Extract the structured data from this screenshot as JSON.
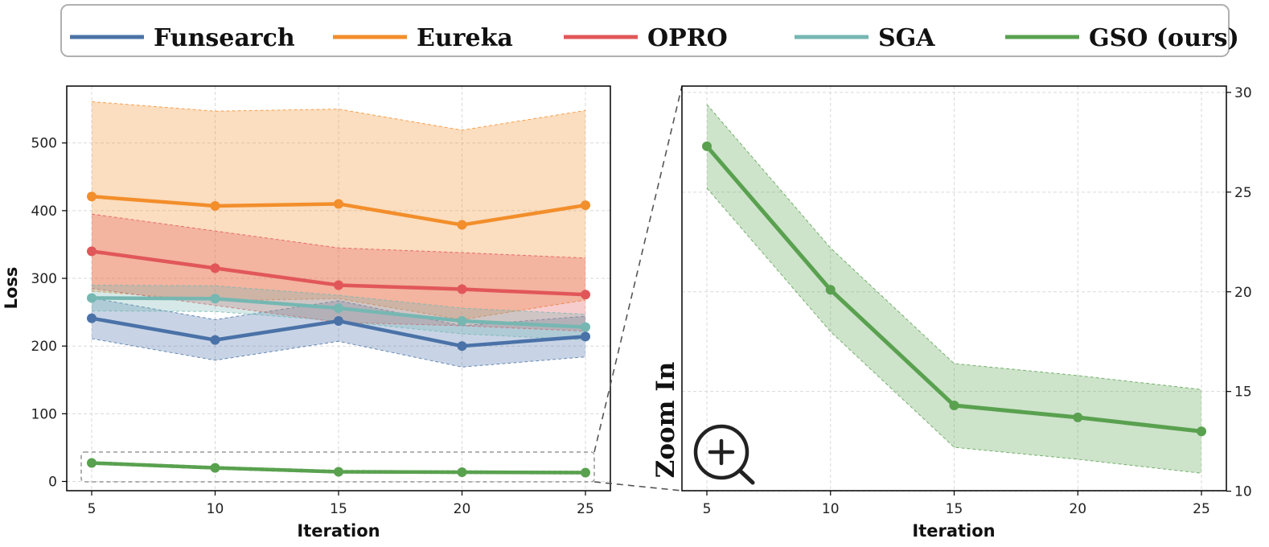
{
  "legend": {
    "items": [
      {
        "label": "Funsearch",
        "color": "#4a72a8"
      },
      {
        "label": "Eureka",
        "color": "#f28e2b"
      },
      {
        "label": "OPRO",
        "color": "#e15759"
      },
      {
        "label": "SGA",
        "color": "#76b7b2"
      },
      {
        "label": "GSO (ours)",
        "color": "#59a14f"
      }
    ]
  },
  "zoom_label": "Zoom In",
  "zoom_icon": "magnifier-plus-icon",
  "chart_data": [
    {
      "type": "line",
      "x": [
        5,
        10,
        15,
        20,
        25
      ],
      "xlabel": "Iteration",
      "ylabel": "Loss",
      "ylim": [
        -12,
        580
      ],
      "yticks": [
        0,
        100,
        200,
        300,
        400,
        500
      ],
      "xticks": [
        5,
        10,
        15,
        20,
        25
      ],
      "grid": true,
      "shaded_band": true,
      "series": [
        {
          "name": "Funsearch",
          "color": "#4a72a8",
          "values": [
            241,
            209,
            237,
            200,
            214
          ],
          "upper": [
            271,
            239,
            267,
            230,
            244
          ],
          "lower": [
            211,
            179,
            207,
            169,
            184
          ]
        },
        {
          "name": "Eureka",
          "color": "#f28e2b",
          "values": [
            421,
            407,
            410,
            379,
            408
          ],
          "upper": [
            561,
            547,
            550,
            519,
            548
          ],
          "lower": [
            281,
            267,
            270,
            239,
            268
          ]
        },
        {
          "name": "OPRO",
          "color": "#e15759",
          "values": [
            340,
            315,
            290,
            284,
            276
          ],
          "upper": [
            395,
            370,
            345,
            338,
            330
          ],
          "lower": [
            285,
            260,
            235,
            230,
            222
          ]
        },
        {
          "name": "SGA",
          "color": "#76b7b2",
          "values": [
            271,
            270,
            256,
            237,
            228
          ],
          "upper": [
            290,
            289,
            275,
            256,
            247
          ],
          "lower": [
            252,
            251,
            237,
            218,
            209
          ]
        },
        {
          "name": "GSO (ours)",
          "color": "#59a14f",
          "values": [
            27.3,
            20.1,
            14.3,
            13.7,
            13.0
          ],
          "upper": [
            29.4,
            22.2,
            16.4,
            15.8,
            15.1
          ],
          "lower": [
            25.2,
            18.0,
            12.2,
            11.6,
            10.9
          ]
        }
      ]
    },
    {
      "type": "line",
      "x": [
        5,
        10,
        15,
        20,
        25
      ],
      "xlabel": "Iteration",
      "ylabel": "",
      "ylim": [
        10,
        30
      ],
      "yticks": [
        10,
        15,
        20,
        25,
        30
      ],
      "xticks": [
        5,
        10,
        15,
        20,
        25
      ],
      "grid": true,
      "shaded_band": true,
      "series": [
        {
          "name": "GSO (ours)",
          "color": "#59a14f",
          "values": [
            27.3,
            20.1,
            14.3,
            13.7,
            13.0
          ],
          "upper": [
            29.4,
            22.2,
            16.4,
            15.8,
            15.1
          ],
          "lower": [
            25.2,
            18.0,
            12.2,
            11.6,
            10.9
          ]
        }
      ]
    }
  ]
}
